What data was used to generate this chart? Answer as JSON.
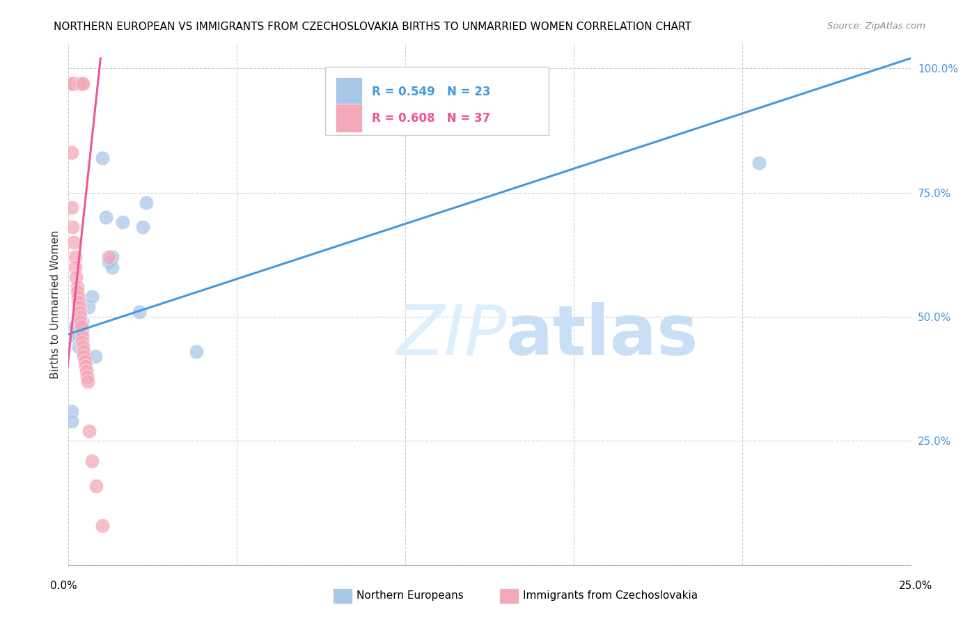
{
  "title": "NORTHERN EUROPEAN VS IMMIGRANTS FROM CZECHOSLOVAKIA BIRTHS TO UNMARRIED WOMEN CORRELATION CHART",
  "source": "Source: ZipAtlas.com",
  "ylabel": "Births to Unmarried Women",
  "xlim": [
    0.0,
    0.25
  ],
  "ylim": [
    0.0,
    1.05
  ],
  "yticks": [
    0.0,
    0.25,
    0.5,
    0.75,
    1.0
  ],
  "ytick_labels": [
    "",
    "25.0%",
    "50.0%",
    "75.0%",
    "100.0%"
  ],
  "legend_blue_r": "R = 0.549",
  "legend_blue_n": "N = 23",
  "legend_pink_r": "R = 0.608",
  "legend_pink_n": "N = 37",
  "blue_color": "#a8c8e8",
  "pink_color": "#f4a8b8",
  "blue_line_color": "#4499dd",
  "pink_line_color": "#ee5599",
  "blue_scatter": [
    [
      0.001,
      0.31
    ],
    [
      0.001,
      0.29
    ],
    [
      0.002,
      0.46
    ],
    [
      0.002,
      0.48
    ],
    [
      0.003,
      0.46
    ],
    [
      0.003,
      0.44
    ],
    [
      0.004,
      0.49
    ],
    [
      0.004,
      0.47
    ],
    [
      0.005,
      0.42
    ],
    [
      0.006,
      0.52
    ],
    [
      0.007,
      0.54
    ],
    [
      0.008,
      0.42
    ],
    [
      0.01,
      0.82
    ],
    [
      0.011,
      0.7
    ],
    [
      0.012,
      0.61
    ],
    [
      0.013,
      0.62
    ],
    [
      0.013,
      0.6
    ],
    [
      0.016,
      0.69
    ],
    [
      0.021,
      0.51
    ],
    [
      0.022,
      0.68
    ],
    [
      0.023,
      0.73
    ],
    [
      0.038,
      0.43
    ],
    [
      0.205,
      0.81
    ]
  ],
  "pink_scatter": [
    [
      0.0005,
      0.97
    ],
    [
      0.001,
      0.97
    ],
    [
      0.0012,
      0.97
    ],
    [
      0.003,
      0.97
    ],
    [
      0.0038,
      0.97
    ],
    [
      0.0042,
      0.97
    ],
    [
      0.001,
      0.83
    ],
    [
      0.001,
      0.72
    ],
    [
      0.0012,
      0.68
    ],
    [
      0.0015,
      0.65
    ],
    [
      0.002,
      0.62
    ],
    [
      0.002,
      0.6
    ],
    [
      0.0022,
      0.58
    ],
    [
      0.0025,
      0.56
    ],
    [
      0.0025,
      0.55
    ],
    [
      0.0028,
      0.54
    ],
    [
      0.003,
      0.53
    ],
    [
      0.0032,
      0.52
    ],
    [
      0.0033,
      0.51
    ],
    [
      0.0035,
      0.5
    ],
    [
      0.0035,
      0.49
    ],
    [
      0.0038,
      0.48
    ],
    [
      0.004,
      0.46
    ],
    [
      0.004,
      0.45
    ],
    [
      0.0042,
      0.44
    ],
    [
      0.0045,
      0.43
    ],
    [
      0.0045,
      0.42
    ],
    [
      0.0048,
      0.41
    ],
    [
      0.005,
      0.4
    ],
    [
      0.0052,
      0.39
    ],
    [
      0.0055,
      0.38
    ],
    [
      0.0058,
      0.37
    ],
    [
      0.0062,
      0.27
    ],
    [
      0.007,
      0.21
    ],
    [
      0.0082,
      0.16
    ],
    [
      0.01,
      0.08
    ],
    [
      0.012,
      0.62
    ]
  ],
  "blue_line_x": [
    0.0,
    0.25
  ],
  "blue_line_y": [
    0.465,
    1.02
  ],
  "pink_line_x": [
    -0.001,
    0.0095
  ],
  "pink_line_y": [
    0.355,
    1.02
  ]
}
